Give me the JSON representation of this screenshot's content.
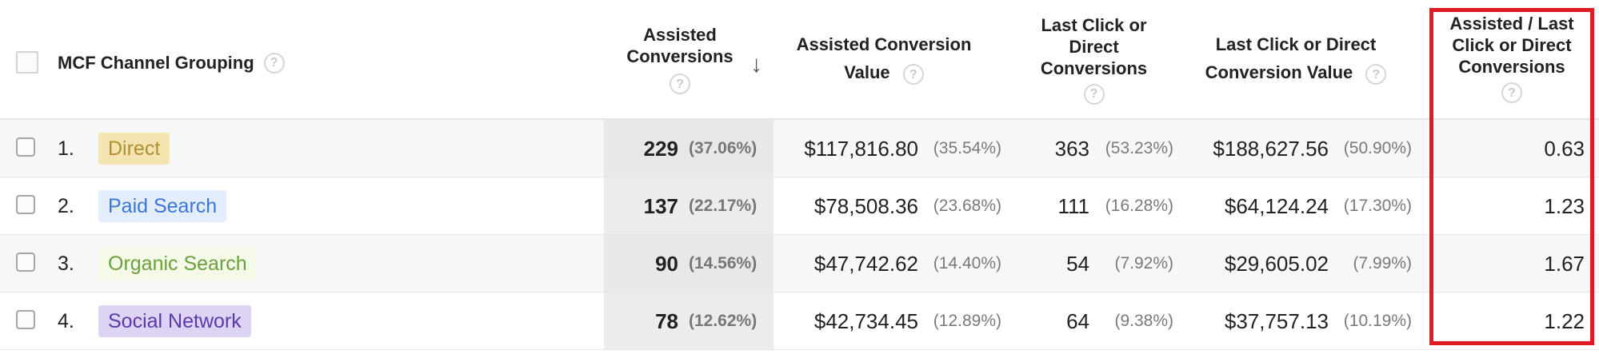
{
  "header": {
    "channel_grouping": "MCF Channel Grouping",
    "assisted_conversions": [
      "Assisted",
      "Conversions"
    ],
    "assisted_conversion_value": [
      "Assisted Conversion",
      "Value"
    ],
    "last_click_conversions": [
      "Last Click or",
      "Direct",
      "Conversions"
    ],
    "last_click_conversion_value": [
      "Last Click or Direct",
      "Conversion Value"
    ],
    "assisted_ratio": [
      "Assisted / Last",
      "Click or Direct",
      "Conversions"
    ],
    "help_glyph": "?",
    "sort_glyph": "↓"
  },
  "rows": [
    {
      "num": "1.",
      "channel": "Direct",
      "assisted": "229",
      "assisted_pct": "(37.06%)",
      "assisted_value": "$117,816.80",
      "assisted_value_pct": "(35.54%)",
      "last_click": "363",
      "last_click_pct": "(53.23%)",
      "last_click_value": "$188,627.56",
      "last_click_value_pct": "(50.90%)",
      "ratio": "0.63"
    },
    {
      "num": "2.",
      "channel": "Paid Search",
      "assisted": "137",
      "assisted_pct": "(22.17%)",
      "assisted_value": "$78,508.36",
      "assisted_value_pct": "(23.68%)",
      "last_click": "111",
      "last_click_pct": "(16.28%)",
      "last_click_value": "$64,124.24",
      "last_click_value_pct": "(17.30%)",
      "ratio": "1.23"
    },
    {
      "num": "3.",
      "channel": "Organic Search",
      "assisted": "90",
      "assisted_pct": "(14.56%)",
      "assisted_value": "$47,742.62",
      "assisted_value_pct": "(14.40%)",
      "last_click": "54",
      "last_click_pct": "(7.92%)",
      "last_click_value": "$29,605.02",
      "last_click_value_pct": "(7.99%)",
      "ratio": "1.67"
    },
    {
      "num": "4.",
      "channel": "Social Network",
      "assisted": "78",
      "assisted_pct": "(12.62%)",
      "assisted_value": "$42,734.45",
      "assisted_value_pct": "(12.89%)",
      "last_click": "64",
      "last_click_pct": "(9.38%)",
      "last_click_value": "$37,757.13",
      "last_click_value_pct": "(10.19%)",
      "ratio": "1.22"
    }
  ],
  "tag_colors": {
    "Direct": {
      "bg": "#f3e4b0",
      "fg": "#b08f35"
    },
    "Paid Search": {
      "bg": "#e3edfb",
      "fg": "#3d76d8"
    },
    "Organic Search": {
      "bg": "#f4f9e8",
      "fg": "#6ba03e"
    },
    "Social Network": {
      "bg": "#ddd3f5",
      "fg": "#5b3aa8"
    }
  },
  "highlight_color": "#e01b24"
}
